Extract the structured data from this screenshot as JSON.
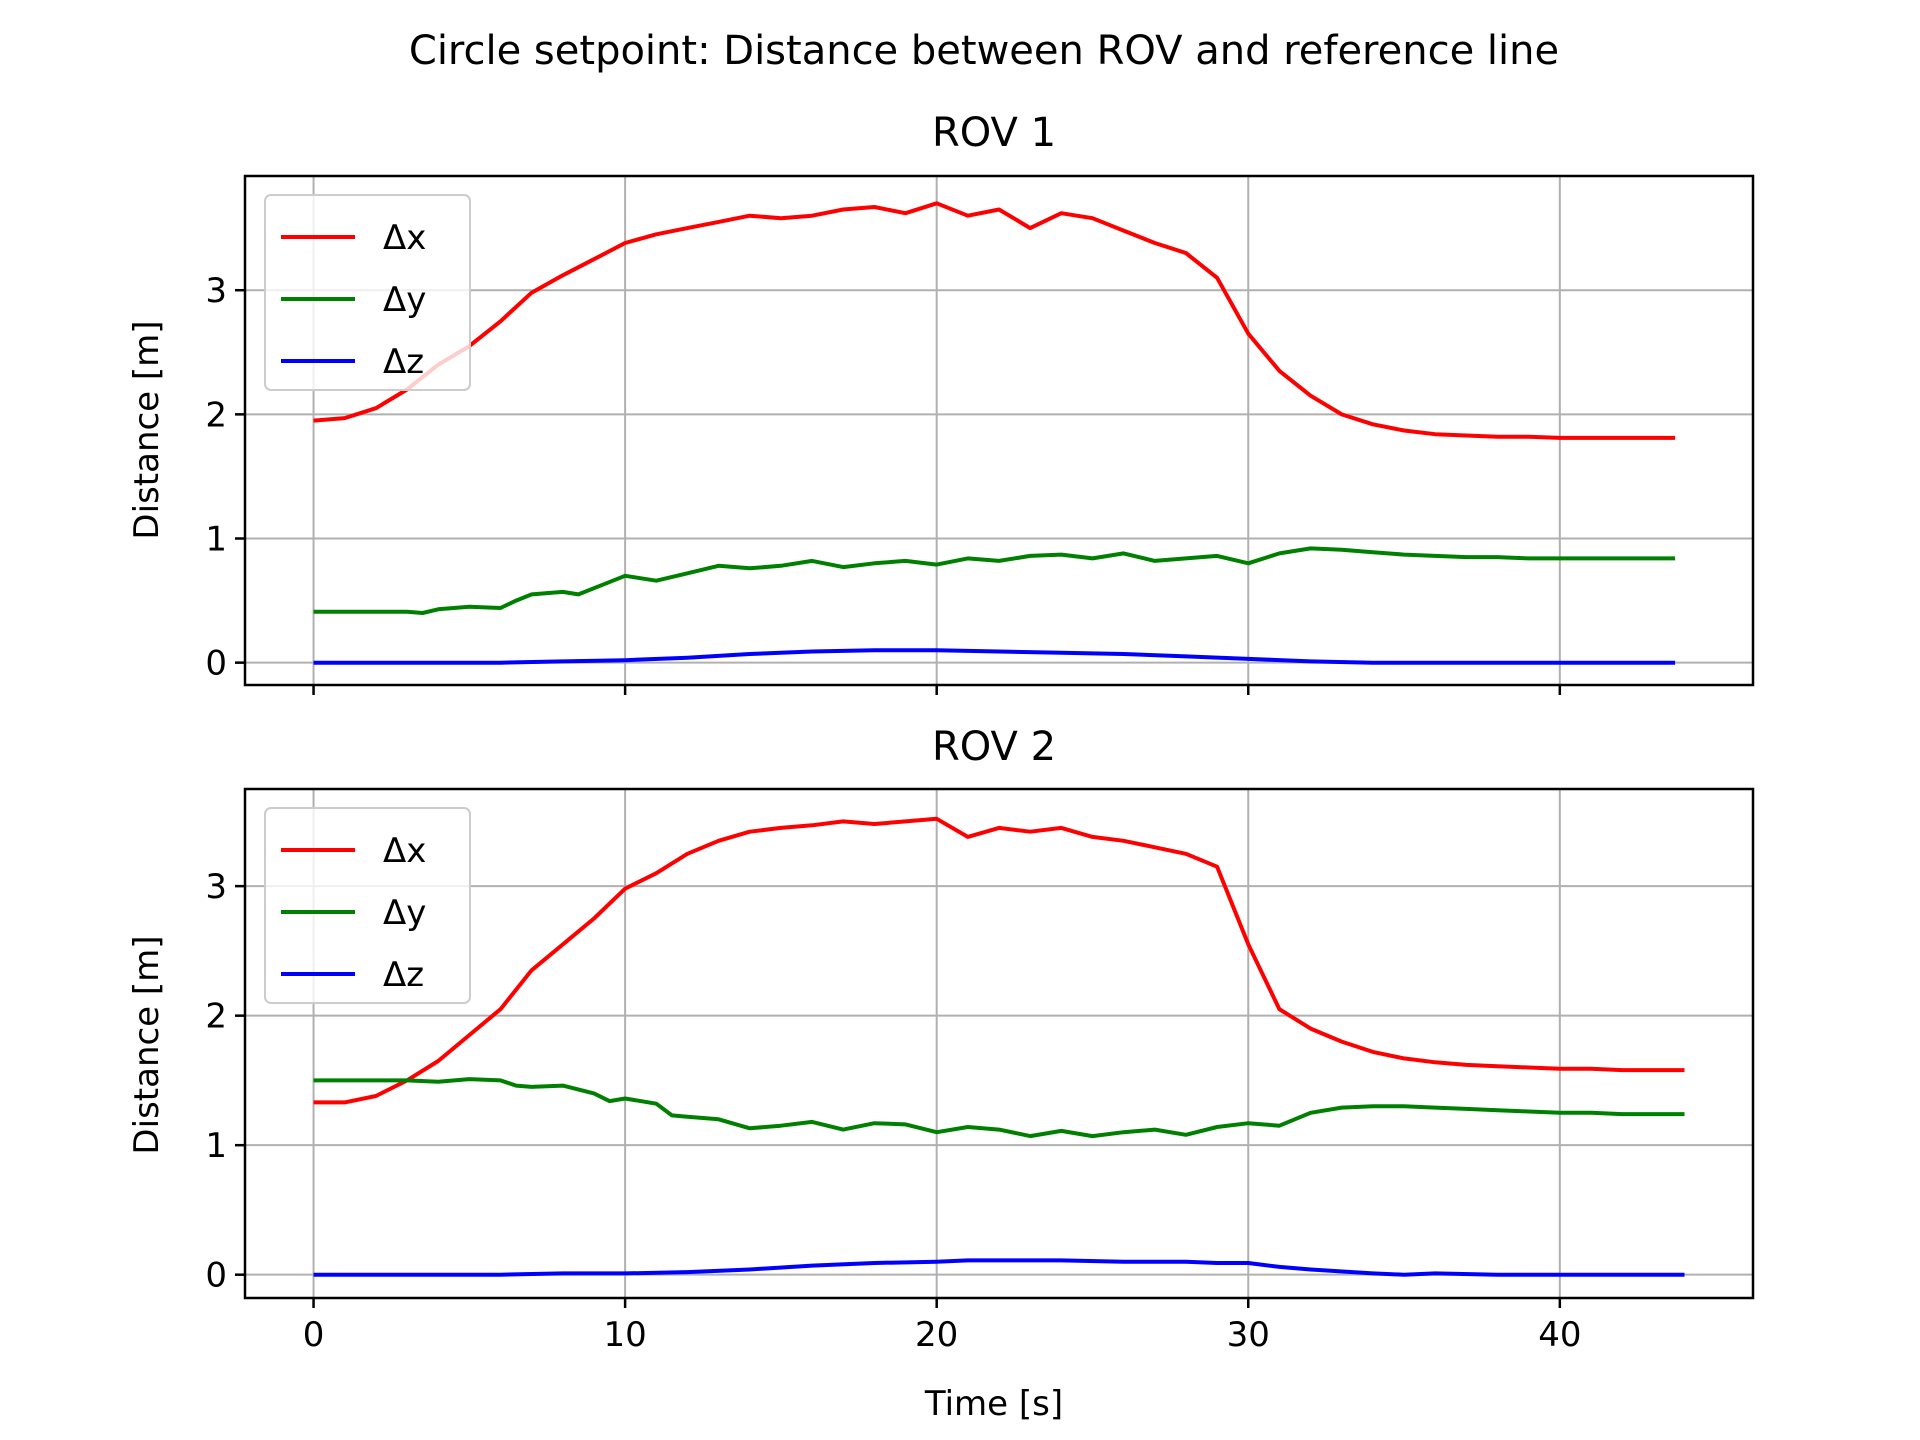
{
  "figure": {
    "suptitle": "Circle setpoint: Distance between ROV and reference line",
    "xlabel": "Time [s]"
  },
  "chart_data": [
    {
      "type": "line",
      "title": "ROV 1",
      "xlabel": "",
      "ylabel": "Distance [m]",
      "xlim": [
        -2.2,
        46.2
      ],
      "ylim": [
        -0.18,
        3.92
      ],
      "xticks": [
        0,
        10,
        20,
        30,
        40
      ],
      "yticks": [
        0,
        1,
        2,
        3
      ],
      "grid": true,
      "legend_position": "top-left",
      "series": [
        {
          "name": "Δx",
          "color": "#ff0000",
          "x": [
            0,
            1,
            2,
            3,
            4,
            5,
            6,
            7,
            8,
            9,
            10,
            11,
            12,
            13,
            14,
            15,
            16,
            17,
            18,
            19,
            20,
            21,
            22,
            23,
            24,
            25,
            26,
            27,
            28,
            29,
            30,
            31,
            32,
            33,
            34,
            35,
            36,
            37,
            38,
            39,
            40,
            41,
            42,
            43,
            43.7
          ],
          "y": [
            1.95,
            1.97,
            2.05,
            2.2,
            2.4,
            2.55,
            2.75,
            2.98,
            3.12,
            3.25,
            3.38,
            3.45,
            3.5,
            3.55,
            3.6,
            3.58,
            3.6,
            3.65,
            3.67,
            3.62,
            3.7,
            3.6,
            3.65,
            3.5,
            3.62,
            3.58,
            3.48,
            3.38,
            3.3,
            3.1,
            2.65,
            2.35,
            2.15,
            2.0,
            1.92,
            1.87,
            1.84,
            1.83,
            1.82,
            1.82,
            1.81,
            1.81,
            1.81,
            1.81,
            1.81
          ]
        },
        {
          "name": "Δy",
          "color": "#008000",
          "x": [
            0,
            1,
            2,
            3,
            3.5,
            4,
            5,
            6,
            6.5,
            7,
            8,
            8.5,
            9,
            10,
            11,
            12,
            13,
            14,
            15,
            16,
            17,
            18,
            19,
            20,
            21,
            22,
            23,
            24,
            25,
            26,
            27,
            28,
            29,
            30,
            31,
            32,
            33,
            34,
            35,
            36,
            37,
            38,
            39,
            40,
            41,
            42,
            43,
            43.7
          ],
          "y": [
            0.41,
            0.41,
            0.41,
            0.41,
            0.4,
            0.43,
            0.45,
            0.44,
            0.5,
            0.55,
            0.57,
            0.55,
            0.6,
            0.7,
            0.66,
            0.72,
            0.78,
            0.76,
            0.78,
            0.82,
            0.77,
            0.8,
            0.82,
            0.79,
            0.84,
            0.82,
            0.86,
            0.87,
            0.84,
            0.88,
            0.82,
            0.84,
            0.86,
            0.8,
            0.88,
            0.92,
            0.91,
            0.89,
            0.87,
            0.86,
            0.85,
            0.85,
            0.84,
            0.84,
            0.84,
            0.84,
            0.84,
            0.84
          ]
        },
        {
          "name": "Δz",
          "color": "#0000ff",
          "x": [
            0,
            2,
            4,
            6,
            8,
            10,
            12,
            14,
            16,
            18,
            20,
            22,
            24,
            26,
            28,
            30,
            32,
            34,
            36,
            38,
            40,
            42,
            43.7
          ],
          "y": [
            0.0,
            0.0,
            0.0,
            0.0,
            0.01,
            0.02,
            0.04,
            0.07,
            0.09,
            0.1,
            0.1,
            0.09,
            0.08,
            0.07,
            0.05,
            0.03,
            0.01,
            0.0,
            0.0,
            0.0,
            0.0,
            0.0,
            0.0
          ]
        }
      ]
    },
    {
      "type": "line",
      "title": "ROV 2",
      "xlabel": "Time [s]",
      "ylabel": "Distance [m]",
      "xlim": [
        -2.2,
        46.2
      ],
      "ylim": [
        -0.18,
        3.75
      ],
      "xticks": [
        0,
        10,
        20,
        30,
        40
      ],
      "yticks": [
        0,
        1,
        2,
        3
      ],
      "grid": true,
      "legend_position": "top-left",
      "series": [
        {
          "name": "Δx",
          "color": "#ff0000",
          "x": [
            0,
            1,
            2,
            3,
            4,
            5,
            6,
            7,
            8,
            9,
            10,
            11,
            12,
            13,
            14,
            15,
            16,
            17,
            18,
            19,
            20,
            21,
            22,
            23,
            24,
            25,
            26,
            27,
            28,
            29,
            30,
            31,
            32,
            33,
            34,
            35,
            36,
            37,
            38,
            39,
            40,
            41,
            42,
            43,
            44
          ],
          "y": [
            1.33,
            1.33,
            1.38,
            1.5,
            1.65,
            1.85,
            2.05,
            2.35,
            2.55,
            2.75,
            2.98,
            3.1,
            3.25,
            3.35,
            3.42,
            3.45,
            3.47,
            3.5,
            3.48,
            3.5,
            3.52,
            3.38,
            3.45,
            3.42,
            3.45,
            3.38,
            3.35,
            3.3,
            3.25,
            3.15,
            2.55,
            2.05,
            1.9,
            1.8,
            1.72,
            1.67,
            1.64,
            1.62,
            1.61,
            1.6,
            1.59,
            1.59,
            1.58,
            1.58,
            1.58
          ]
        },
        {
          "name": "Δy",
          "color": "#008000",
          "x": [
            0,
            1,
            2,
            3,
            4,
            5,
            6,
            6.5,
            7,
            8,
            9,
            9.5,
            10,
            11,
            11.5,
            12,
            13,
            14,
            15,
            16,
            17,
            18,
            19,
            20,
            21,
            22,
            23,
            24,
            25,
            26,
            27,
            28,
            29,
            30,
            31,
            32,
            33,
            34,
            35,
            36,
            37,
            38,
            39,
            40,
            41,
            42,
            43,
            44
          ],
          "y": [
            1.5,
            1.5,
            1.5,
            1.5,
            1.49,
            1.51,
            1.5,
            1.46,
            1.45,
            1.46,
            1.4,
            1.34,
            1.36,
            1.32,
            1.23,
            1.22,
            1.2,
            1.13,
            1.15,
            1.18,
            1.12,
            1.17,
            1.16,
            1.1,
            1.14,
            1.12,
            1.07,
            1.11,
            1.07,
            1.1,
            1.12,
            1.08,
            1.14,
            1.17,
            1.15,
            1.25,
            1.29,
            1.3,
            1.3,
            1.29,
            1.28,
            1.27,
            1.26,
            1.25,
            1.25,
            1.24,
            1.24,
            1.24
          ]
        },
        {
          "name": "Δz",
          "color": "#0000ff",
          "x": [
            0,
            2,
            4,
            6,
            8,
            10,
            12,
            14,
            16,
            18,
            20,
            21,
            22,
            24,
            26,
            28,
            29,
            30,
            31,
            32,
            34,
            35,
            36,
            38,
            40,
            42,
            44
          ],
          "y": [
            0.0,
            0.0,
            0.0,
            0.0,
            0.01,
            0.01,
            0.02,
            0.04,
            0.07,
            0.09,
            0.1,
            0.11,
            0.11,
            0.11,
            0.1,
            0.1,
            0.09,
            0.09,
            0.06,
            0.04,
            0.01,
            0.0,
            0.01,
            0.0,
            0.0,
            0.0,
            0.0
          ]
        }
      ]
    }
  ]
}
